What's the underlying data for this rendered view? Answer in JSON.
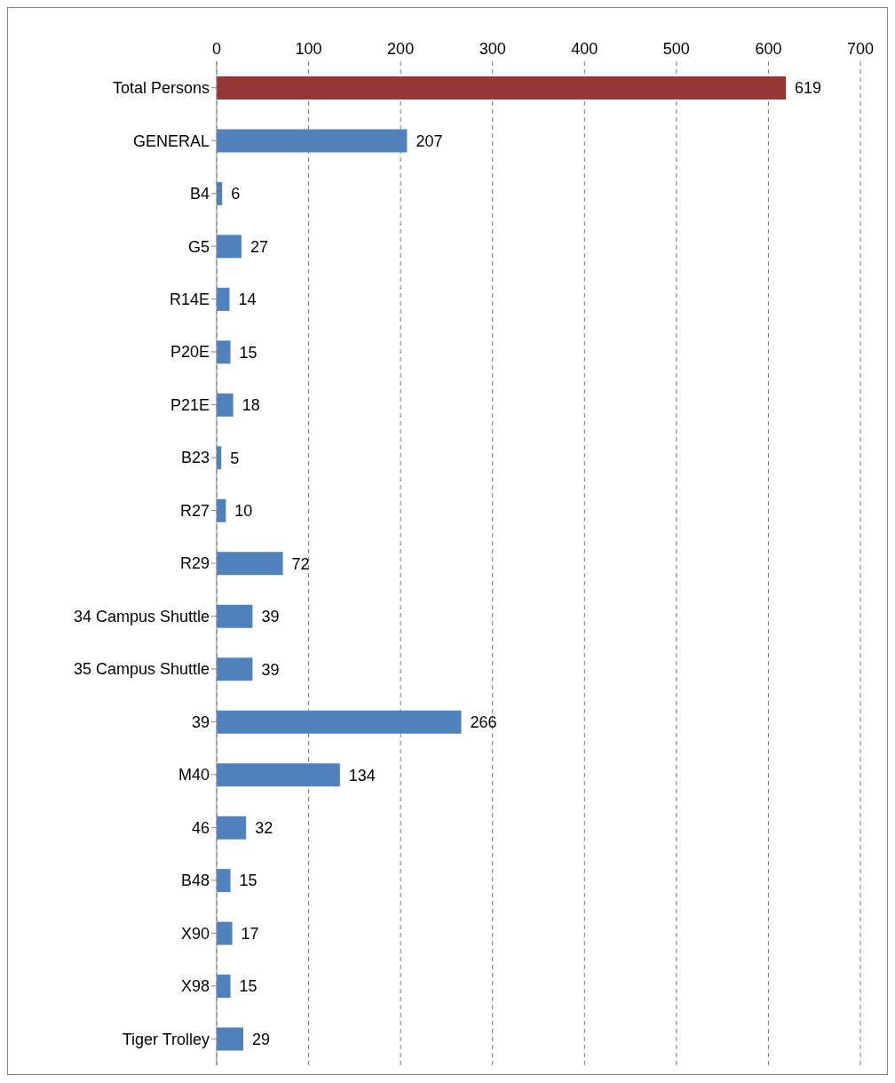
{
  "chart_data": {
    "type": "bar",
    "orientation": "horizontal",
    "categories": [
      "Total Persons",
      "GENERAL",
      "B4",
      "G5",
      "R14E",
      "P20E",
      "P21E",
      "B23",
      "R27",
      "R29",
      "34 Campus Shuttle",
      "35 Campus Shuttle",
      "39",
      "M40",
      "46",
      "B48",
      "X90",
      "X98",
      "Tiger Trolley"
    ],
    "values": [
      619,
      207,
      6,
      27,
      14,
      15,
      18,
      5,
      10,
      72,
      39,
      39,
      266,
      134,
      32,
      15,
      17,
      15,
      29
    ],
    "colors": [
      "#953735",
      "#4f81bd",
      "#4f81bd",
      "#4f81bd",
      "#4f81bd",
      "#4f81bd",
      "#4f81bd",
      "#4f81bd",
      "#4f81bd",
      "#4f81bd",
      "#4f81bd",
      "#4f81bd",
      "#4f81bd",
      "#4f81bd",
      "#4f81bd",
      "#4f81bd",
      "#4f81bd",
      "#4f81bd",
      "#4f81bd"
    ],
    "xlim": [
      0,
      700
    ],
    "xticks": [
      0,
      100,
      200,
      300,
      400,
      500,
      600,
      700
    ],
    "grid": "x",
    "data_labels": true
  }
}
